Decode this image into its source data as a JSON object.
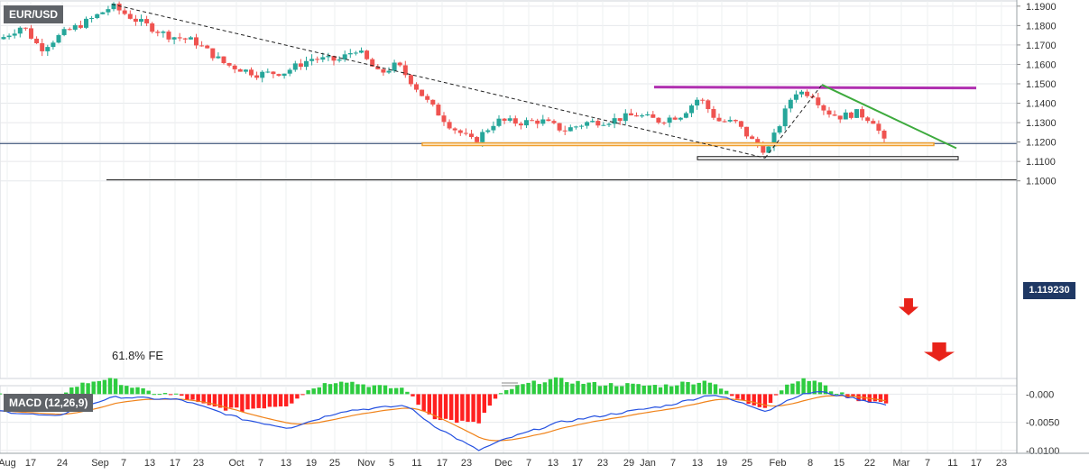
{
  "symbol": "EUR/USD",
  "macd_label": "MACD (12,26,9)",
  "current_price_label": "1.119230",
  "fe_label": "61.8% FE",
  "colors": {
    "bull": "#26a69a",
    "bear": "#ef5350",
    "trendline_purple": "#b030b0",
    "trendline_green": "#3daa3d",
    "support_orange": "#f0a030",
    "arrow_red": "#e8231a",
    "price_line": "#1f3864",
    "macd_line": "#2450e0",
    "signal_line": "#f0831a",
    "hist_pos": "#2ecc40",
    "hist_neg": "#ff2020"
  },
  "chart_data": {
    "type": "candlestick",
    "price_axis": {
      "ticks": [
        "1.1900",
        "1.1800",
        "1.1700",
        "1.1600",
        "1.1500",
        "1.1400",
        "1.1300",
        "1.1200",
        "1.1100",
        "1.1000"
      ],
      "ylim": [
        0.9982,
        1.1927
      ]
    },
    "macd_axis": {
      "ticks": [
        "-0.000",
        "-0.0050",
        "-0.0100"
      ],
      "ylim": [
        -0.0105,
        0.0015
      ]
    },
    "time_axis": {
      "ticks": [
        "Aug",
        "17",
        "24",
        "Sep",
        "7",
        "13",
        "17",
        "23",
        "Oct",
        "7",
        "13",
        "19",
        "25",
        "Nov",
        "5",
        "11",
        "17",
        "23",
        "Dec",
        "7",
        "13",
        "17",
        "23",
        "29",
        "Jan",
        "7",
        "13",
        "19",
        "25",
        "Feb",
        "8",
        "15",
        "22",
        "Mar",
        "7",
        "11",
        "17",
        "23"
      ]
    },
    "current_price": 1.11923,
    "levels": [
      {
        "name": "61.8% FE",
        "value": 1.1005
      },
      {
        "name": "support zone",
        "from": 1.1182,
        "to": 1.1195
      },
      {
        "name": "lower zone",
        "from": 1.1109,
        "to": 1.1125
      },
      {
        "name": "resistance",
        "value": 1.1483
      }
    ]
  }
}
